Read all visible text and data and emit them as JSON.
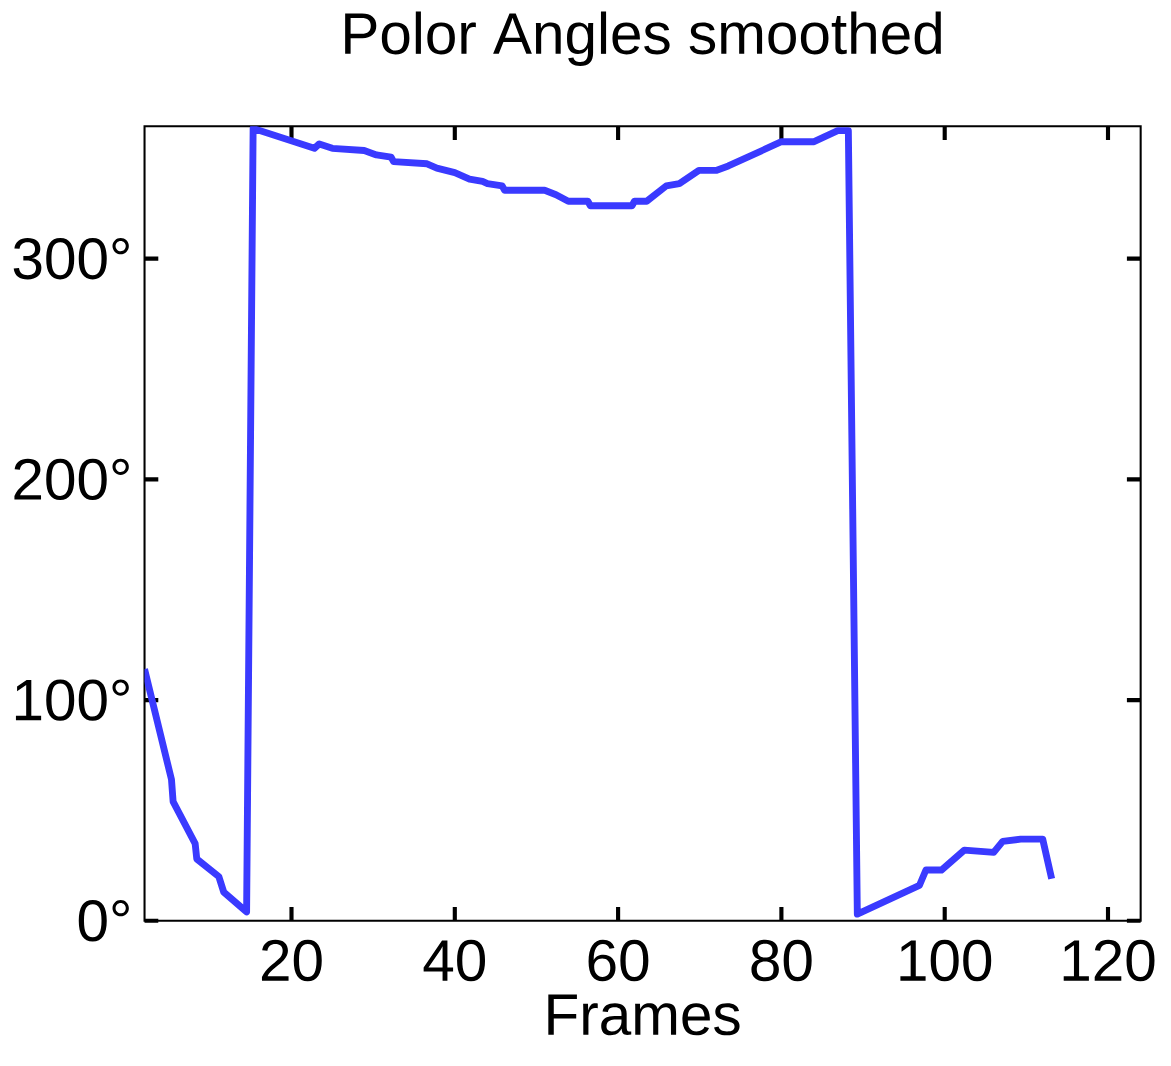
{
  "chart_data": {
    "type": "line",
    "title": "Polor Angles smoothed",
    "xlabel": "Frames",
    "x": [
      2,
      5.3,
      5.5,
      8.2,
      8.4,
      11.1,
      11.7,
      14.5,
      15.3,
      22.8,
      23.4,
      25,
      28.9,
      30.4,
      32.2,
      32.5,
      36.6,
      37.8,
      40,
      41.8,
      43.4,
      44,
      45.8,
      46.1,
      51,
      52.4,
      53.9,
      56.3,
      56.6,
      61.7,
      62,
      63.5,
      65.9,
      67.5,
      69.9,
      72,
      73.5,
      80,
      84,
      86.9,
      88.2,
      89.3,
      96.9,
      97.7,
      99.6,
      102.4,
      106,
      107.1,
      109.3,
      112,
      113.1
    ],
    "values": [
      114,
      64,
      54,
      35,
      28,
      20,
      13,
      4,
      359,
      350,
      352,
      350,
      349,
      347,
      346,
      344,
      343,
      341,
      339,
      336,
      335,
      334,
      333,
      331,
      331,
      329,
      326,
      326,
      324,
      324,
      326,
      326,
      333,
      334,
      340,
      340,
      342,
      353,
      353,
      358,
      358,
      3,
      16,
      23,
      23,
      32,
      31,
      36,
      37,
      37,
      19
    ],
    "color": "#3a3aff",
    "line_style": "solid",
    "marker": "none",
    "grid": false,
    "xlim": [
      2,
      124
    ],
    "ylim": [
      0,
      360
    ],
    "xticks": [
      20,
      40,
      60,
      80,
      100,
      120
    ],
    "yticks": [
      {
        "value": 0,
        "label": "0°"
      },
      {
        "value": 100,
        "label": "100°"
      },
      {
        "value": 200,
        "label": "200°"
      },
      {
        "value": 300,
        "label": "300°"
      }
    ]
  }
}
